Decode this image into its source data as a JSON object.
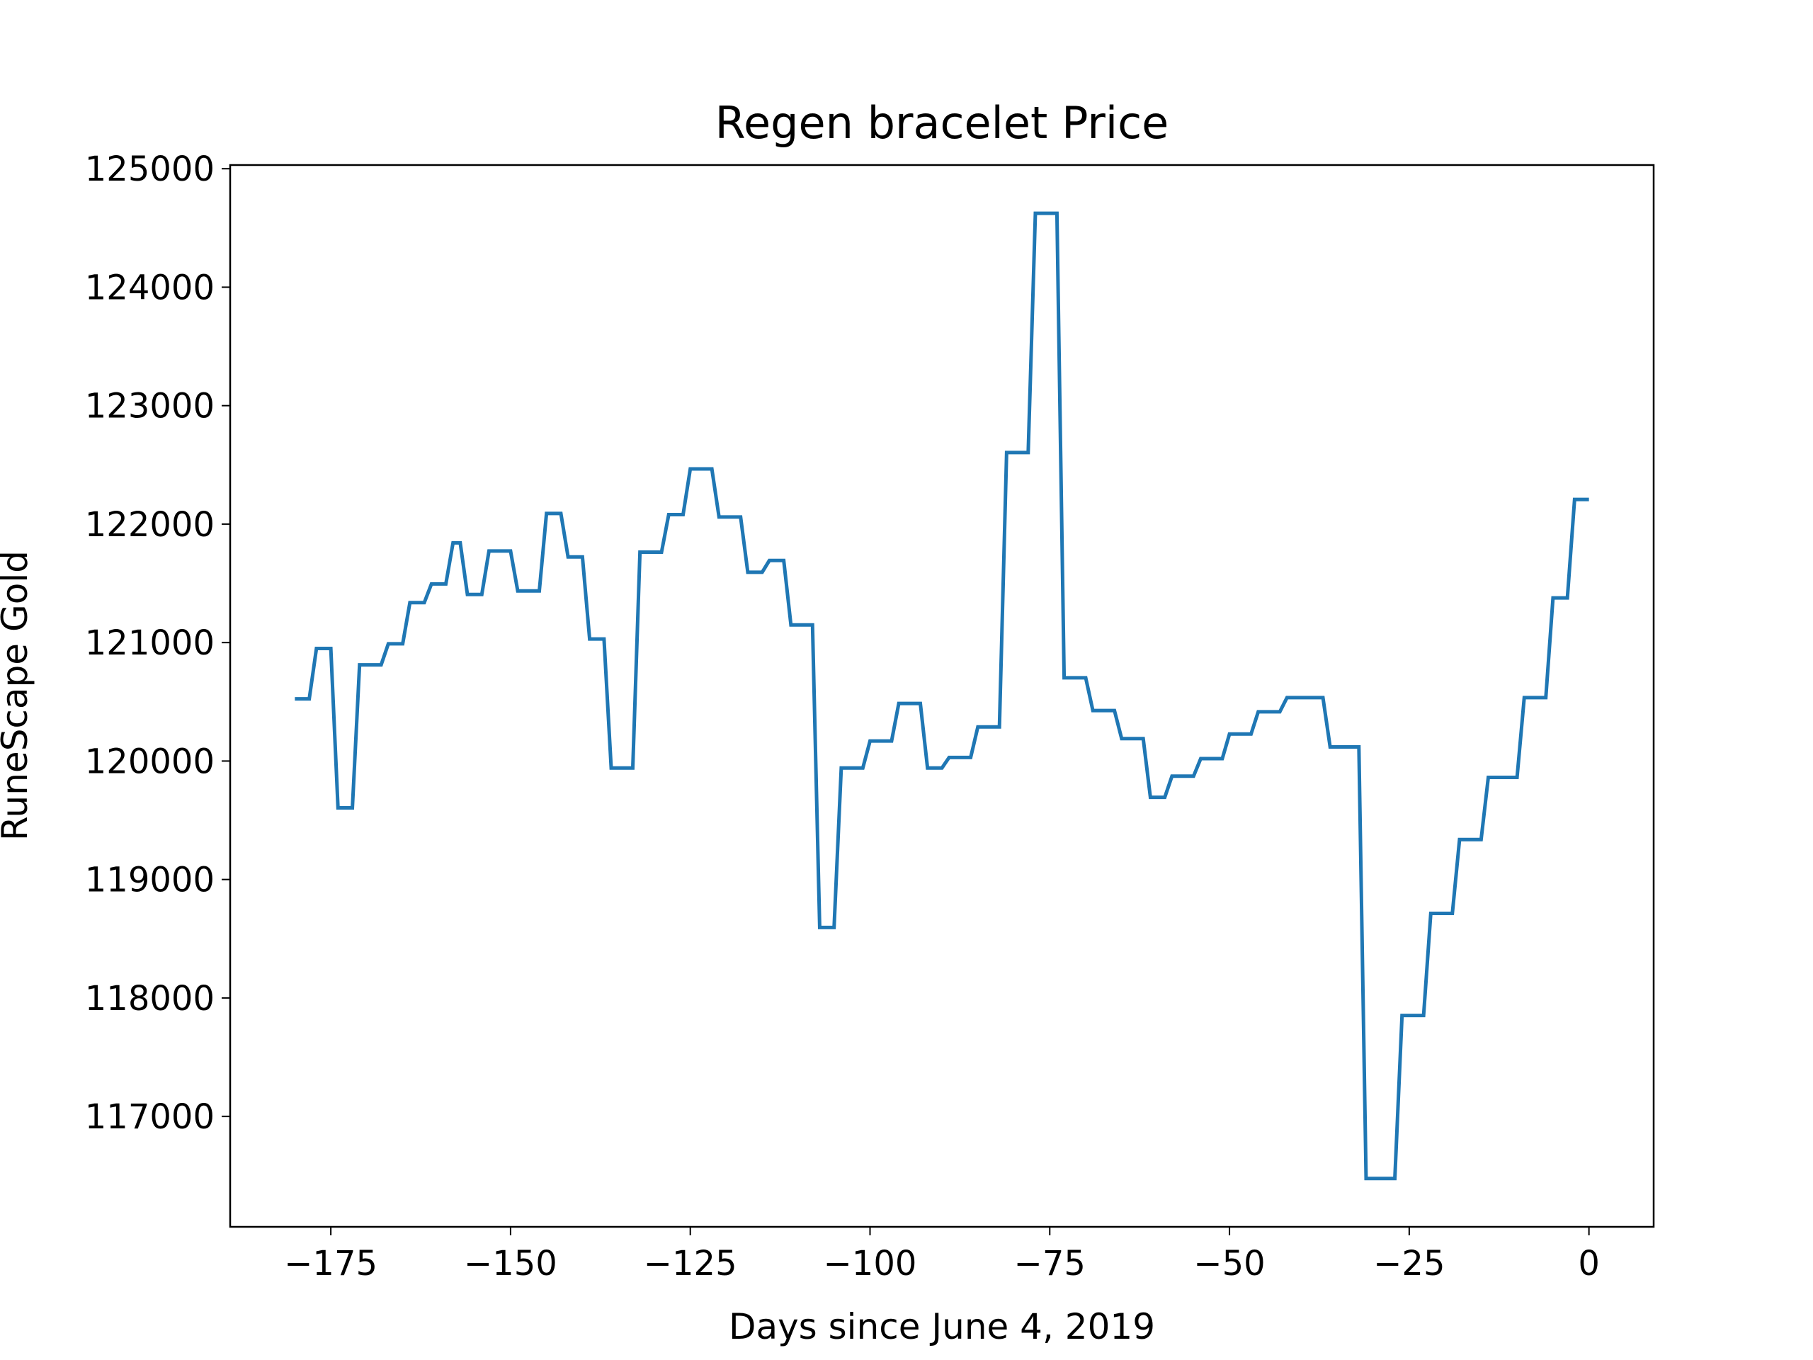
{
  "chart_data": {
    "type": "line",
    "title": "Regen bracelet Price",
    "xlabel": "Days since June 4, 2019",
    "ylabel": "RuneScape Gold",
    "x": [
      -180,
      -178,
      -177,
      -175,
      -174,
      -172,
      -171,
      -168,
      -167,
      -165,
      -164,
      -162,
      -161,
      -159,
      -158,
      -157,
      -156,
      -154,
      -153,
      -150,
      -149,
      -146,
      -145,
      -143,
      -142,
      -140,
      -139,
      -137,
      -136,
      -133,
      -132,
      -129,
      -128,
      -126,
      -125,
      -122,
      -121,
      -118,
      -117,
      -115,
      -114,
      -112,
      -111,
      -108,
      -107,
      -105,
      -104,
      -101,
      -100,
      -97,
      -96,
      -93,
      -92,
      -90,
      -89,
      -86,
      -85,
      -82,
      -81,
      -78,
      -77,
      -74,
      -73,
      -70,
      -69,
      -66,
      -65,
      -62,
      -61,
      -59,
      -58,
      -55,
      -54,
      -51,
      -50,
      -47,
      -46,
      -43,
      -42,
      -37,
      -36,
      -32,
      -31,
      -27,
      -26,
      -23,
      -22,
      -19,
      -18,
      -15,
      -14,
      -10,
      -9,
      -6,
      -5,
      -3,
      -2,
      0
    ],
    "series": [
      {
        "name": "Regen bracelet",
        "color": "#1f77b4",
        "values": [
          120525,
          120525,
          120950,
          120950,
          119605,
          119605,
          120812,
          120812,
          120990,
          120990,
          121337,
          121337,
          121495,
          121495,
          121842,
          121842,
          121406,
          121406,
          121773,
          121773,
          121436,
          121436,
          122090,
          122090,
          121723,
          121723,
          121030,
          121030,
          119941,
          119941,
          121763,
          121763,
          122080,
          122080,
          122466,
          122466,
          122060,
          122060,
          121594,
          121594,
          121693,
          121693,
          121149,
          121149,
          118595,
          118595,
          119941,
          119941,
          120169,
          120169,
          120486,
          120486,
          119941,
          119941,
          120030,
          120030,
          120288,
          120288,
          122604,
          122604,
          124624,
          124624,
          120703,
          120703,
          120426,
          120426,
          120189,
          120189,
          119694,
          119694,
          119872,
          119872,
          120020,
          120020,
          120228,
          120228,
          120416,
          120416,
          120535,
          120535,
          120119,
          120119,
          116476,
          116476,
          117852,
          117852,
          118714,
          118714,
          119337,
          119337,
          119862,
          119862,
          120535,
          120535,
          121377,
          121377,
          122208,
          122208
        ]
      }
    ],
    "xlim": [
      -189,
      9
    ],
    "ylim": [
      116068,
      125031
    ],
    "xticks": [
      {
        "value": -175,
        "label": "−175"
      },
      {
        "value": -150,
        "label": "−150"
      },
      {
        "value": -125,
        "label": "−125"
      },
      {
        "value": -100,
        "label": "−100"
      },
      {
        "value": -75,
        "label": "−75"
      },
      {
        "value": -50,
        "label": "−50"
      },
      {
        "value": -25,
        "label": "−25"
      },
      0
    ],
    "yticks": [
      117000,
      118000,
      119000,
      120000,
      121000,
      122000,
      123000,
      124000,
      125000
    ]
  }
}
